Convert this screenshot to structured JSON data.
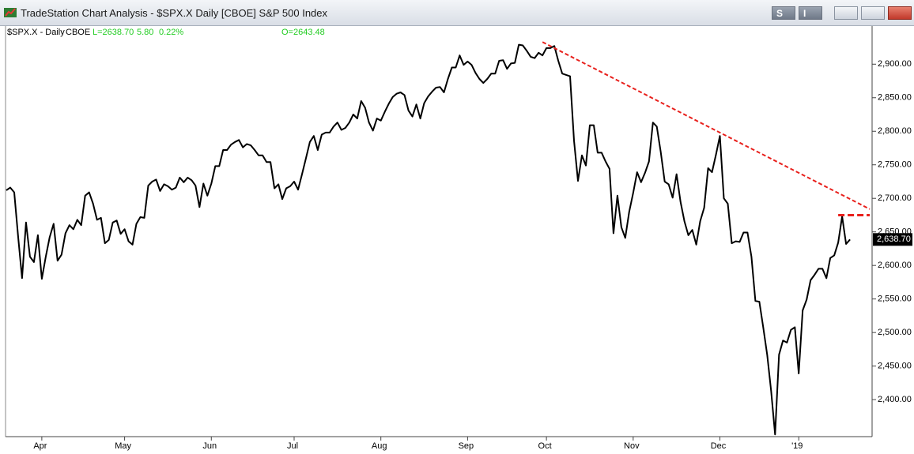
{
  "window": {
    "title": "TradeStation Chart Analysis - $SPX.X Daily [CBOE] S&P 500 Index",
    "buttons": [
      "S",
      "I"
    ]
  },
  "header": {
    "symbol": "$SPX.X - Daily",
    "exchange": "CBOE",
    "last": "L=2638.70",
    "change": "5.80",
    "change_pct": "0.22%",
    "open": "O=2643.48"
  },
  "chart_data": {
    "type": "line",
    "color": "#000000",
    "values": [
      2712,
      2716,
      2709,
      2642,
      2581,
      2664,
      2613,
      2605,
      2645,
      2580,
      2613,
      2642,
      2662,
      2607,
      2616,
      2648,
      2660,
      2654,
      2668,
      2660,
      2704,
      2709,
      2692,
      2668,
      2671,
      2633,
      2638,
      2664,
      2667,
      2647,
      2654,
      2636,
      2631,
      2662,
      2672,
      2671,
      2719,
      2725,
      2728,
      2711,
      2721,
      2718,
      2713,
      2716,
      2731,
      2724,
      2731,
      2727,
      2719,
      2687,
      2722,
      2704,
      2722,
      2748,
      2748,
      2772,
      2772,
      2780,
      2784,
      2787,
      2776,
      2781,
      2779,
      2772,
      2764,
      2764,
      2754,
      2754,
      2715,
      2721,
      2699,
      2715,
      2718,
      2725,
      2713,
      2736,
      2760,
      2784,
      2793,
      2772,
      2795,
      2798,
      2798,
      2807,
      2813,
      2802,
      2805,
      2813,
      2825,
      2819,
      2845,
      2835,
      2813,
      2801,
      2819,
      2816,
      2829,
      2841,
      2851,
      2856,
      2858,
      2854,
      2831,
      2822,
      2840,
      2819,
      2842,
      2852,
      2859,
      2865,
      2866,
      2858,
      2878,
      2895,
      2895,
      2913,
      2899,
      2904,
      2899,
      2887,
      2878,
      2872,
      2878,
      2886,
      2886,
      2905,
      2906,
      2893,
      2901,
      2902,
      2929,
      2928,
      2920,
      2911,
      2909,
      2917,
      2913,
      2924,
      2924,
      2927,
      2905,
      2886,
      2884,
      2882,
      2786,
      2726,
      2764,
      2749,
      2809,
      2809,
      2768,
      2768,
      2755,
      2744,
      2648,
      2704,
      2657,
      2641,
      2680,
      2708,
      2739,
      2724,
      2738,
      2755,
      2813,
      2807,
      2769,
      2725,
      2721,
      2701,
      2736,
      2695,
      2666,
      2645,
      2653,
      2631,
      2666,
      2686,
      2745,
      2739,
      2765,
      2793,
      2700,
      2692,
      2633,
      2636,
      2635,
      2649,
      2649,
      2613,
      2547,
      2546,
      2507,
      2466,
      2413,
      2348,
      2467,
      2488,
      2485,
      2504,
      2508,
      2439,
      2533,
      2549,
      2578,
      2586,
      2595,
      2595,
      2581,
      2611,
      2615,
      2634,
      2673,
      2632,
      2638.7
    ],
    "xlim": [
      0,
      219
    ],
    "xticks": [
      {
        "value": 9,
        "label": "Apr"
      },
      {
        "value": 30,
        "label": "May"
      },
      {
        "value": 52,
        "label": "Jun"
      },
      {
        "value": 73,
        "label": "Jul"
      },
      {
        "value": 95,
        "label": "Aug"
      },
      {
        "value": 117,
        "label": "Sep"
      },
      {
        "value": 137,
        "label": "Oct"
      },
      {
        "value": 159,
        "label": "Nov"
      },
      {
        "value": 181,
        "label": "Dec"
      },
      {
        "value": 201,
        "label": "'19"
      }
    ],
    "ylim": [
      2346,
      2958
    ],
    "yticks": [
      {
        "value": 2400,
        "label": "2,400.00"
      },
      {
        "value": 2450,
        "label": "2,450.00"
      },
      {
        "value": 2500,
        "label": "2,500.00"
      },
      {
        "value": 2550,
        "label": "2,550.00"
      },
      {
        "value": 2600,
        "label": "2,600.00"
      },
      {
        "value": 2650,
        "label": "2,650.00"
      },
      {
        "value": 2700,
        "label": "2,700.00"
      },
      {
        "value": 2750,
        "label": "2,750.00"
      },
      {
        "value": 2800,
        "label": "2,800.00"
      },
      {
        "value": 2850,
        "label": "2,850.00"
      },
      {
        "value": 2900,
        "label": "2,900.00"
      }
    ],
    "price_marker": {
      "value": 2638.7,
      "label": "2,638.70"
    },
    "annotations": [
      {
        "x": [
          136,
          219
        ],
        "values": [
          2933,
          2684
        ],
        "color": "#e8201c"
      },
      {
        "x": [
          211,
          219
        ],
        "values": [
          2675,
          2675
        ],
        "color": "#e8201c"
      }
    ]
  }
}
